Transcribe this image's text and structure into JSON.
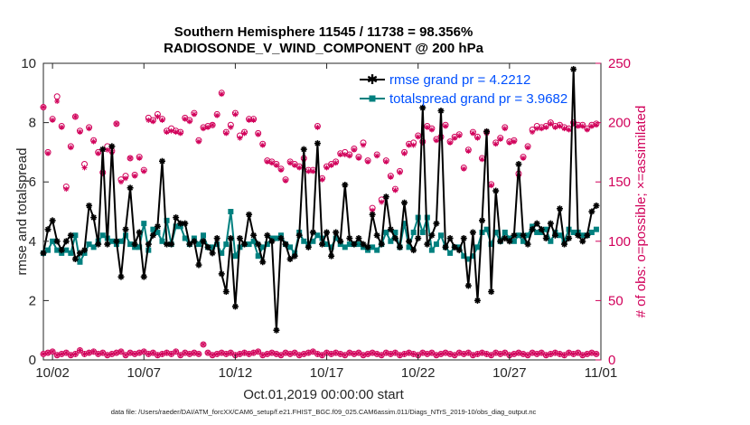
{
  "chart_data": {
    "type": "line",
    "title_line1": "Southern Hemisphere 11545 / 11738 = 98.356%",
    "title_line2": "RADIOSONDE_V_WIND_COMPONENT @ 200 hPa",
    "ylabel_left": "rmse and totalspread",
    "ylabel_right": "# of obs: o=possible; ×=assimilated",
    "xlabel": "Oct.01,2019 00:00:00 start",
    "footnote": "data file: /Users/raeder/DAI/ATM_forcXX/CAM6_setup/f.e21.FHIST_BGC.f09_025.CAM6assim.011/Diags_NTrS_2019-10/obs_diag_output.nc",
    "xlim": [
      1.5,
      32
    ],
    "ylim_left": [
      0,
      10
    ],
    "ylim_right": [
      0,
      250
    ],
    "x_ticks": [
      2,
      7,
      12,
      17,
      22,
      27,
      32
    ],
    "x_tick_labels": [
      "10/02",
      "10/07",
      "10/12",
      "10/17",
      "10/22",
      "10/27",
      "11/01"
    ],
    "y_ticks_left": [
      0,
      2,
      4,
      6,
      8,
      10
    ],
    "y_ticks_left_labels": [
      "0",
      "2",
      "4",
      "6",
      "8",
      "10"
    ],
    "y_ticks_right": [
      0,
      50,
      100,
      150,
      200,
      250
    ],
    "y_ticks_right_labels": [
      "0",
      "50",
      "100",
      "150",
      "200",
      "250"
    ],
    "legend": {
      "position": "top-right",
      "rmse_label": "rmse grand pr = 4.2212",
      "spread_label": "totalspread grand pr = 3.9682"
    },
    "colors": {
      "rmse": "#000000",
      "spread": "#00807f",
      "obs": "#d1005a",
      "legend_text": "#0050ff"
    },
    "x": [
      1.5,
      1.75,
      2.0,
      2.25,
      2.5,
      2.75,
      3.0,
      3.25,
      3.5,
      3.75,
      4.0,
      4.25,
      4.5,
      4.75,
      5.0,
      5.25,
      5.5,
      5.75,
      6.0,
      6.25,
      6.5,
      6.75,
      7.0,
      7.25,
      7.5,
      7.75,
      8.0,
      8.25,
      8.5,
      8.75,
      9.0,
      9.25,
      9.5,
      9.75,
      10.0,
      10.25,
      10.5,
      10.75,
      11.0,
      11.25,
      11.5,
      11.75,
      12.0,
      12.25,
      12.5,
      12.75,
      13.0,
      13.25,
      13.5,
      13.75,
      14.0,
      14.25,
      14.5,
      14.75,
      15.0,
      15.25,
      15.5,
      15.75,
      16.0,
      16.25,
      16.5,
      16.75,
      17.0,
      17.25,
      17.5,
      17.75,
      18.0,
      18.25,
      18.5,
      18.75,
      19.0,
      19.25,
      19.5,
      19.75,
      20.0,
      20.25,
      20.5,
      20.75,
      21.0,
      21.25,
      21.5,
      21.75,
      22.0,
      22.25,
      22.5,
      22.75,
      23.0,
      23.25,
      23.5,
      23.75,
      24.0,
      24.25,
      24.5,
      24.75,
      25.0,
      25.25,
      25.5,
      25.75,
      26.0,
      26.25,
      26.5,
      26.75,
      27.0,
      27.25,
      27.5,
      27.75,
      28.0,
      28.25,
      28.5,
      28.75,
      29.0,
      29.25,
      29.5,
      29.75,
      30.0,
      30.25,
      30.5,
      30.75,
      31.0,
      31.25,
      31.5,
      31.75
    ],
    "series": [
      {
        "name": "rmse",
        "values": [
          3.6,
          4.4,
          4.7,
          4.0,
          3.7,
          4.0,
          4.2,
          3.4,
          3.6,
          3.7,
          5.2,
          4.8,
          3.9,
          7.1,
          3.9,
          7.2,
          4.0,
          2.8,
          4.4,
          5.8,
          3.9,
          4.3,
          2.8,
          3.9,
          4.2,
          4.5,
          6.7,
          3.9,
          3.9,
          4.8,
          4.6,
          4.6,
          3.9,
          4.0,
          3.2,
          4.0,
          3.8,
          3.6,
          4.1,
          2.9,
          2.3,
          4.1,
          1.8,
          4.1,
          3.9,
          4.9,
          4.2,
          3.9,
          3.3,
          4.2,
          4.0,
          1.0,
          4.1,
          3.9,
          3.4,
          3.5,
          4.2,
          7.1,
          3.8,
          4.3,
          7.3,
          3.9,
          4.3,
          3.5,
          4.3,
          4.0,
          5.9,
          4.1,
          3.9,
          4.1,
          3.9,
          3.8,
          4.9,
          4.2,
          3.9,
          5.5,
          4.4,
          4.1,
          3.8,
          5.3,
          4.0,
          3.7,
          4.1,
          8.5,
          3.9,
          4.2,
          4.6,
          8.4,
          3.8,
          4.1,
          3.8,
          3.7,
          4.1,
          2.5,
          4.3,
          2.0,
          4.7,
          7.7,
          2.3,
          5.7,
          4.0,
          4.1,
          4.0,
          4.2,
          6.6,
          4.2,
          3.9,
          4.4,
          4.6,
          4.4,
          4.1,
          4.6,
          4.2,
          5.1,
          3.9,
          4.1,
          9.8,
          4.2,
          4.0,
          4.2,
          5.0,
          5.2
        ]
      },
      {
        "name": "totalspread",
        "values": [
          3.6,
          3.7,
          4.0,
          3.7,
          3.6,
          3.7,
          3.6,
          4.2,
          3.3,
          3.6,
          3.9,
          3.8,
          4.0,
          4.2,
          4.1,
          4.0,
          3.9,
          4.0,
          4.2,
          3.9,
          3.8,
          3.8,
          4.6,
          3.7,
          4.4,
          4.3,
          4.0,
          4.7,
          3.9,
          4.5,
          4.5,
          4.1,
          3.9,
          4.1,
          3.9,
          4.2,
          3.8,
          3.8,
          3.9,
          3.6,
          3.9,
          5.0,
          3.5,
          3.8,
          3.9,
          3.9,
          4.0,
          3.5,
          3.8,
          3.9,
          4.1,
          4.1,
          4.2,
          3.9,
          3.8,
          3.6,
          4.3,
          4.0,
          3.9,
          4.0,
          4.2,
          4.1,
          3.9,
          3.8,
          4.1,
          3.9,
          3.8,
          3.9,
          3.9,
          3.9,
          3.8,
          3.7,
          3.8,
          3.7,
          3.9,
          4.3,
          4.0,
          4.3,
          3.8,
          4.6,
          3.8,
          4.3,
          4.8,
          4.3,
          4.8,
          3.7,
          3.9,
          4.2,
          3.8,
          3.6,
          3.8,
          3.8,
          3.5,
          3.4,
          3.5,
          3.8,
          4.3,
          4.4,
          3.9,
          4.3,
          4.0,
          4.3,
          4.1,
          4.0,
          4.2,
          4.0,
          4.2,
          4.5,
          4.3,
          4.3,
          4.4,
          4.0,
          4.3,
          4.2,
          4.0,
          4.4,
          4.3,
          4.3,
          4.2,
          4.2,
          4.3,
          4.4
        ]
      },
      {
        "name": "obs_possible",
        "values": [
          213,
          175,
          203,
          222,
          197,
          146,
          180,
          205,
          193,
          165,
          196,
          185,
          175,
          158,
          180,
          176,
          199,
          152,
          155,
          170,
          156,
          171,
          160,
          204,
          202,
          207,
          203,
          193,
          195,
          193,
          192,
          204,
          202,
          208,
          185,
          196,
          197,
          198,
          207,
          225,
          192,
          198,
          208,
          189,
          192,
          203,
          203,
          191,
          182,
          168,
          167,
          165,
          161,
          152,
          167,
          165,
          163,
          170,
          160,
          160,
          197,
          153,
          163,
          165,
          167,
          174,
          175,
          173,
          178,
          171,
          183,
          168,
          128,
          173,
          135,
          168,
          155,
          144,
          159,
          175,
          182,
          183,
          189,
          184,
          197,
          195,
          186,
          188,
          198,
          184,
          188,
          190,
          162,
          177,
          192,
          188,
          170,
          192,
          148,
          183,
          187,
          196,
          184,
          185,
          157,
          171,
          180,
          194,
          197,
          196,
          197,
          200,
          197,
          198,
          196,
          195,
          200,
          198,
          198,
          195,
          198,
          199
        ]
      },
      {
        "name": "obs_assimilated",
        "values": [
          213,
          174,
          202,
          218,
          196,
          144,
          179,
          205,
          192,
          162,
          195,
          184,
          174,
          157,
          177,
          175,
          199,
          150,
          153,
          170,
          155,
          170,
          159,
          202,
          201,
          205,
          202,
          192,
          193,
          192,
          191,
          203,
          201,
          207,
          184,
          195,
          196,
          198,
          206,
          224,
          191,
          196,
          207,
          187,
          191,
          202,
          202,
          190,
          181,
          167,
          166,
          164,
          160,
          151,
          166,
          164,
          162,
          169,
          159,
          159,
          196,
          152,
          162,
          164,
          166,
          173,
          173,
          172,
          177,
          170,
          181,
          167,
          126,
          172,
          133,
          167,
          154,
          143,
          158,
          174,
          181,
          181,
          188,
          183,
          196,
          194,
          185,
          187,
          197,
          183,
          187,
          189,
          161,
          176,
          191,
          187,
          169,
          191,
          147,
          182,
          186,
          195,
          183,
          184,
          155,
          170,
          179,
          192,
          195,
          195,
          196,
          199,
          196,
          197,
          195,
          194,
          199,
          197,
          197,
          194,
          197,
          198
        ]
      },
      {
        "name": "obs_possible_low",
        "values": [
          5,
          6,
          7,
          4,
          5,
          6,
          4,
          5,
          8,
          5,
          6,
          7,
          5,
          6,
          4,
          5,
          6,
          7,
          4,
          6,
          5,
          6,
          7,
          5,
          6,
          4,
          5,
          6,
          5,
          7,
          4,
          6,
          5,
          6,
          5,
          13,
          6,
          4,
          5,
          6,
          5,
          6,
          4,
          5,
          6,
          5,
          6,
          7,
          4,
          5,
          6,
          5,
          4,
          6,
          5,
          6,
          4,
          5,
          6,
          7,
          5,
          4,
          6,
          5,
          6,
          5,
          4,
          6,
          5,
          6,
          4,
          5,
          6,
          5,
          4,
          6,
          5,
          6,
          4,
          5,
          6,
          5,
          4,
          6,
          5,
          6,
          4,
          5,
          6,
          5,
          4,
          6,
          5,
          6,
          4,
          5,
          6,
          5,
          4,
          6,
          5,
          6,
          4,
          5,
          6,
          5,
          4,
          6,
          5,
          6,
          4,
          5,
          6,
          5,
          4,
          6,
          5,
          6,
          4,
          5,
          6,
          5
        ]
      }
    ]
  }
}
